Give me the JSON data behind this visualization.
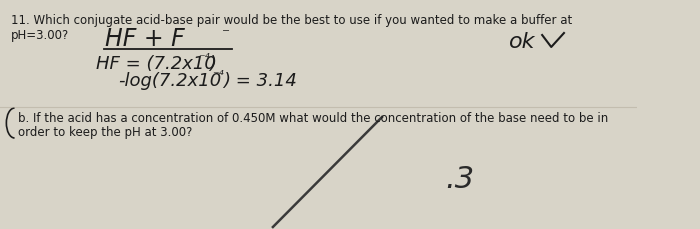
{
  "background_color": "#d8d4c8",
  "printed_line1": "11. Which conjugate acid-base pair would be the best to use if you wanted to make a buffer at",
  "printed_line2_a": "pH=3.00?",
  "printed_b_line1": "b. If the acid has a concentration of 0.450M what would the concentration of the base need to be in",
  "printed_b_line2": "order to keep the pH at 3.00?",
  "hw_hff": "HF + F",
  "hw_hff_minus": "⁻",
  "hw_ka": "HF = (7.2x10",
  "hw_ka_exp": "⁻⁴",
  "hw_ka_close": ")",
  "hw_log": "-log(7.2x10",
  "hw_log_exp": "⁻⁴",
  "hw_log_close": ") = 3.14",
  "hw_ok": "ok",
  "hw_3": ".3",
  "font_size_printed": 8.5,
  "font_size_hw_large": 17,
  "font_size_hw_med": 13,
  "font_size_hw_small": 11,
  "text_color": "#1c1c1c",
  "underline_color": "#1c1c1c",
  "slash_color": "#3a3a3a",
  "three_color": "#2a2a2a"
}
